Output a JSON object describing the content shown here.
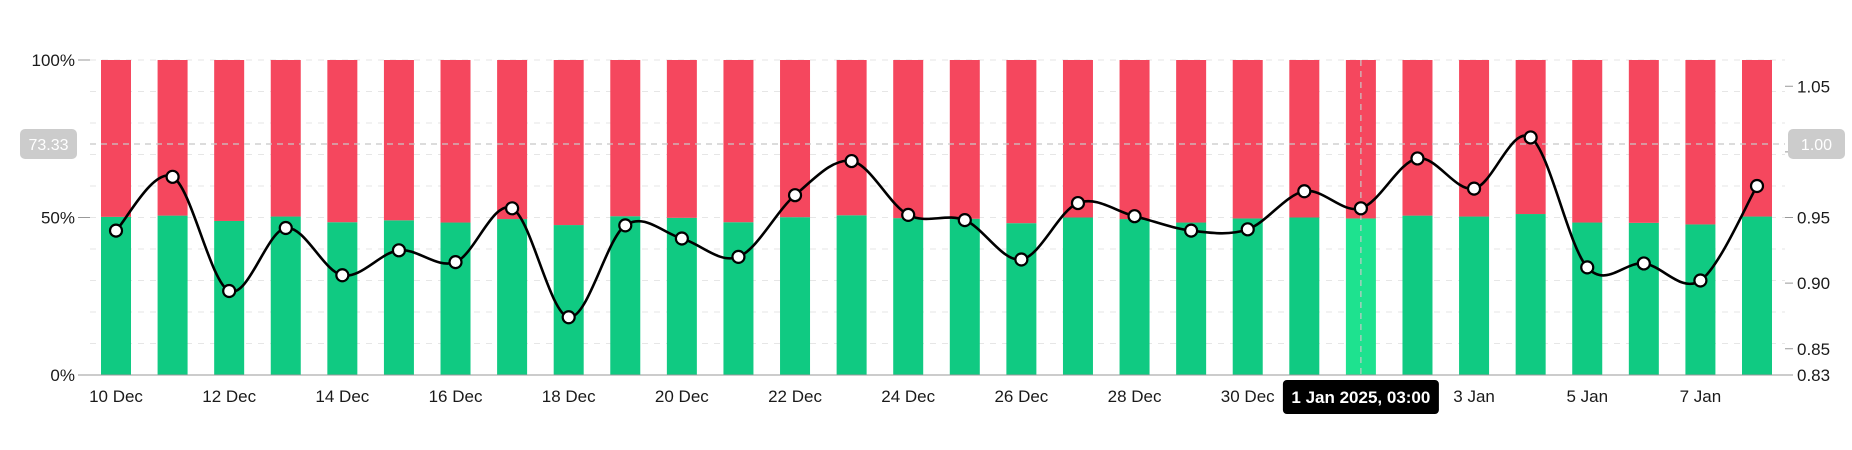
{
  "colors": {
    "long": "#10ca82",
    "long_highlight": "#1ee28f",
    "short": "#f5475e",
    "line": "#000000",
    "grid": "#e6e6e6",
    "crosshair": "#c8c8c8",
    "badge_bg": "#cccccc",
    "tooltip_bg": "#000000"
  },
  "chart_data": {
    "type": "bar",
    "stacked": true,
    "percent": true,
    "categories": [
      "10 Dec",
      "11 Dec",
      "12 Dec",
      "13 Dec",
      "14 Dec",
      "15 Dec",
      "16 Dec",
      "17 Dec",
      "18 Dec",
      "19 Dec",
      "20 Dec",
      "21 Dec",
      "22 Dec",
      "23 Dec",
      "24 Dec",
      "25 Dec",
      "26 Dec",
      "27 Dec",
      "28 Dec",
      "29 Dec",
      "30 Dec",
      "31 Dec",
      "1 Jan",
      "2 Jan",
      "3 Jan",
      "4 Jan",
      "5 Jan",
      "6 Jan",
      "7 Jan",
      "8 Jan"
    ],
    "x_tick_labels": [
      "10 Dec",
      "12 Dec",
      "14 Dec",
      "16 Dec",
      "18 Dec",
      "20 Dec",
      "22 Dec",
      "24 Dec",
      "26 Dec",
      "28 Dec",
      "30 Dec",
      "3 Jan",
      "5 Jan",
      "7 Jan"
    ],
    "series": [
      {
        "values": [
          50.2,
          50.6,
          48.9,
          50.3,
          48.5,
          49.1,
          48.4,
          49.5,
          47.6,
          50.4,
          49.9,
          48.5,
          50.1,
          50.7,
          49.8,
          49.6,
          48.2,
          50.0,
          49.5,
          48.4,
          49.7,
          50.0,
          49.7,
          50.6,
          50.3,
          51.1,
          48.4,
          48.3,
          47.8,
          50.3
        ]
      },
      {
        "values": [
          49.8,
          49.4,
          51.1,
          49.7,
          51.5,
          50.9,
          51.6,
          50.5,
          52.4,
          49.6,
          50.1,
          51.5,
          49.9,
          49.3,
          50.2,
          50.4,
          51.8,
          50.0,
          50.5,
          51.6,
          50.3,
          50.0,
          50.3,
          49.4,
          49.7,
          48.9,
          51.6,
          51.7,
          52.2,
          49.7
        ]
      }
    ],
    "ratio": {
      "values": [
        0.94,
        0.981,
        0.894,
        0.942,
        0.906,
        0.925,
        0.916,
        0.957,
        0.874,
        0.944,
        0.934,
        0.92,
        0.967,
        0.993,
        0.952,
        0.948,
        0.918,
        0.961,
        0.951,
        0.94,
        0.941,
        0.97,
        0.957,
        0.995,
        0.972,
        1.011,
        0.912,
        0.915,
        0.902,
        0.974
      ],
      "ylim": [
        0.83,
        1.07
      ],
      "ticks": [
        0.83,
        0.85,
        0.9,
        0.95,
        1.0,
        1.05
      ],
      "tick_labels": [
        "0.83",
        "0.85",
        "0.90",
        "0.95",
        "1.00",
        "1.05"
      ]
    },
    "y_left": {
      "ylim": [
        0,
        100
      ],
      "ticks": [
        0,
        50,
        100
      ],
      "tick_labels": [
        "0%",
        "50%",
        "100%"
      ]
    },
    "crosshair": {
      "index": 22,
      "x_label": "1 Jan 2025, 03:00",
      "left_label": "73.33",
      "right_label": "1.00",
      "left_value": 73.33
    }
  }
}
